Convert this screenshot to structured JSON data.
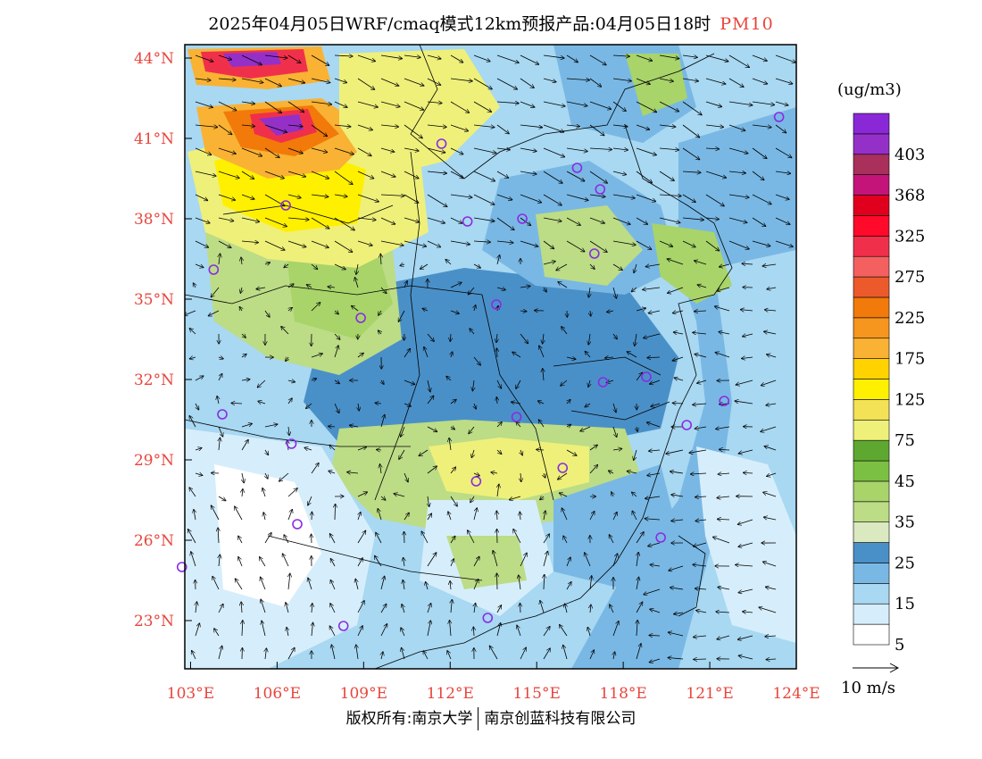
{
  "title": {
    "main": "2025年04月05日WRF/cmaq模式12km预报产品:04月05日18时",
    "pollutant": "PM10"
  },
  "colors": {
    "axis_label": "#e8453c",
    "frame": "#000000",
    "wind_arrow": "#000000",
    "city_marker": "#8a2be2",
    "border_line": "#000000"
  },
  "axes": {
    "lat_labels": [
      "44°N",
      "41°N",
      "38°N",
      "35°N",
      "32°N",
      "29°N",
      "26°N",
      "23°N"
    ],
    "lat_values": [
      44,
      41,
      38,
      35,
      32,
      29,
      26,
      23
    ],
    "lon_labels": [
      "103°E",
      "106°E",
      "109°E",
      "112°E",
      "115°E",
      "118°E",
      "121°E",
      "124°E"
    ],
    "lon_values": [
      103,
      106,
      109,
      112,
      115,
      118,
      121,
      124
    ],
    "lon_range": [
      102.8,
      124
    ],
    "lat_range": [
      21.2,
      44.5
    ]
  },
  "legend": {
    "unit": "(ug/m3)",
    "bins": [
      {
        "color": "#ffffff",
        "label": "5"
      },
      {
        "color": "#d6eefb",
        "label": ""
      },
      {
        "color": "#a8d8f2",
        "label": "15"
      },
      {
        "color": "#79b8e4",
        "label": ""
      },
      {
        "color": "#4a90c8",
        "label": "25"
      },
      {
        "color": "#dbe9c0",
        "label": ""
      },
      {
        "color": "#bcdc86",
        "label": "35"
      },
      {
        "color": "#a8d46a",
        "label": ""
      },
      {
        "color": "#7cc043",
        "label": "45"
      },
      {
        "color": "#5ea832",
        "label": ""
      },
      {
        "color": "#eef07a",
        "label": "75"
      },
      {
        "color": "#f3e256",
        "label": ""
      },
      {
        "color": "#fff000",
        "label": "125"
      },
      {
        "color": "#ffd200",
        "label": ""
      },
      {
        "color": "#f9b233",
        "label": "175"
      },
      {
        "color": "#f7961e",
        "label": ""
      },
      {
        "color": "#f17a0a",
        "label": "225"
      },
      {
        "color": "#ec5a2c",
        "label": ""
      },
      {
        "color": "#f46060",
        "label": "275"
      },
      {
        "color": "#f0304a",
        "label": ""
      },
      {
        "color": "#ff0a2a",
        "label": "325"
      },
      {
        "color": "#e0001e",
        "label": ""
      },
      {
        "color": "#c4147a",
        "label": "368"
      },
      {
        "color": "#a8305a",
        "label": ""
      },
      {
        "color": "#9430c8",
        "label": "403"
      },
      {
        "color": "#8a28d8",
        "label": ""
      }
    ]
  },
  "wind_scale": {
    "label": "10 m/s"
  },
  "footer": {
    "copyright": "版权所有:南京大学",
    "company": "南京创蓝科技有限公司"
  }
}
